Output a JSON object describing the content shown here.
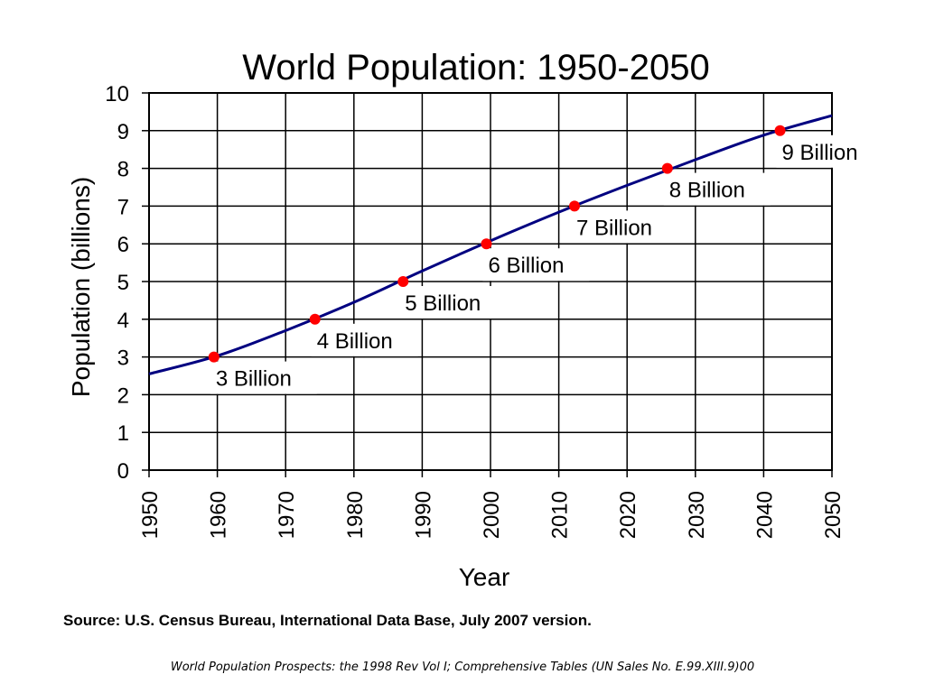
{
  "chart_data": {
    "type": "line",
    "title": "World Population: 1950-2050",
    "xlabel": "Year",
    "ylabel": "Population (billions)",
    "xlim": [
      1950,
      2050
    ],
    "ylim": [
      0,
      10
    ],
    "x_ticks": [
      "1950",
      "1960",
      "1970",
      "1980",
      "1990",
      "2000",
      "2010",
      "2020",
      "2030",
      "2040",
      "2050"
    ],
    "y_ticks": [
      "0",
      "1",
      "2",
      "3",
      "4",
      "5",
      "6",
      "7",
      "8",
      "9",
      "10"
    ],
    "grid": true,
    "series": [
      {
        "color": "#000080",
        "x": [
          1950,
          1960,
          1970,
          1980,
          1990,
          2000,
          2010,
          2020,
          2030,
          2040,
          2050
        ],
        "y": [
          2.55,
          3.03,
          3.7,
          4.45,
          5.28,
          6.08,
          6.84,
          7.55,
          8.23,
          8.88,
          9.4
        ]
      }
    ],
    "milestones": [
      {
        "x": 1959.5,
        "y": 3,
        "label": "3 Billion"
      },
      {
        "x": 1974.3,
        "y": 4,
        "label": "4 Billion"
      },
      {
        "x": 1987.2,
        "y": 5,
        "label": "5 Billion"
      },
      {
        "x": 1999.4,
        "y": 6,
        "label": "6 Billion"
      },
      {
        "x": 2012.3,
        "y": 7,
        "label": "7 Billion"
      },
      {
        "x": 2025.9,
        "y": 8,
        "label": "8 Billion"
      },
      {
        "x": 2042.4,
        "y": 9,
        "label": "9 Billion"
      }
    ],
    "milestone_color": "#ff0000"
  },
  "source": "Source: U.S. Census Bureau, International Data Base, July 2007 version.",
  "footnote": "World Population Prospects: the 1998 Rev Vol I; Comprehensive Tables (UN Sales No. E.99.XIII.9)00"
}
